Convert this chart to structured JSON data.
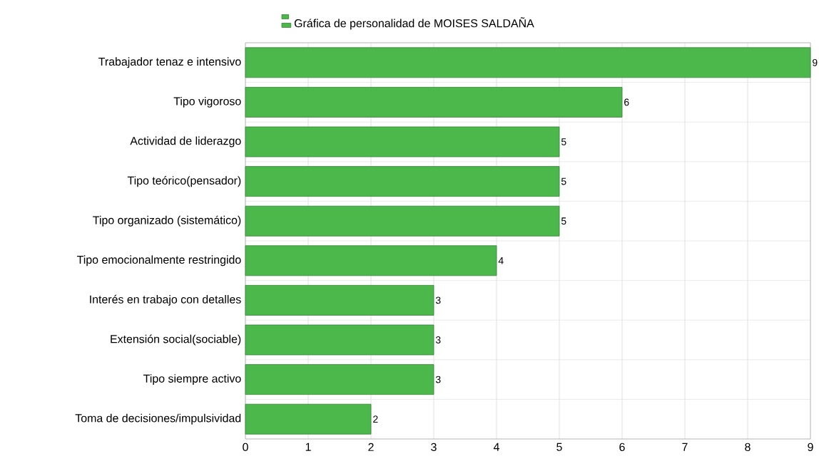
{
  "chart_data": {
    "type": "bar",
    "orientation": "horizontal",
    "categories": [
      "Trabajador tenaz e intensivo",
      "Tipo vigoroso",
      "Actividad de liderazgo",
      "Tipo teórico(pensador)",
      "Tipo organizado (sistemático)",
      "Tipo emocionalmente restringido",
      "Interés en trabajo con detalles",
      "Extensión social(sociable)",
      "Tipo siempre activo",
      "Toma de decisiones/impulsividad"
    ],
    "series": [
      {
        "name": "Gráfica de personalidad de MOISES SALDAÑA",
        "color": "#4cb84c",
        "values": [
          9,
          6,
          5,
          5,
          5,
          4,
          3,
          3,
          3,
          2
        ]
      }
    ],
    "xlim": [
      0,
      9
    ],
    "xticks": [
      0,
      1,
      2,
      3,
      4,
      5,
      6,
      7,
      8,
      9
    ],
    "grid": true,
    "legend": "top",
    "data_labels": true
  }
}
